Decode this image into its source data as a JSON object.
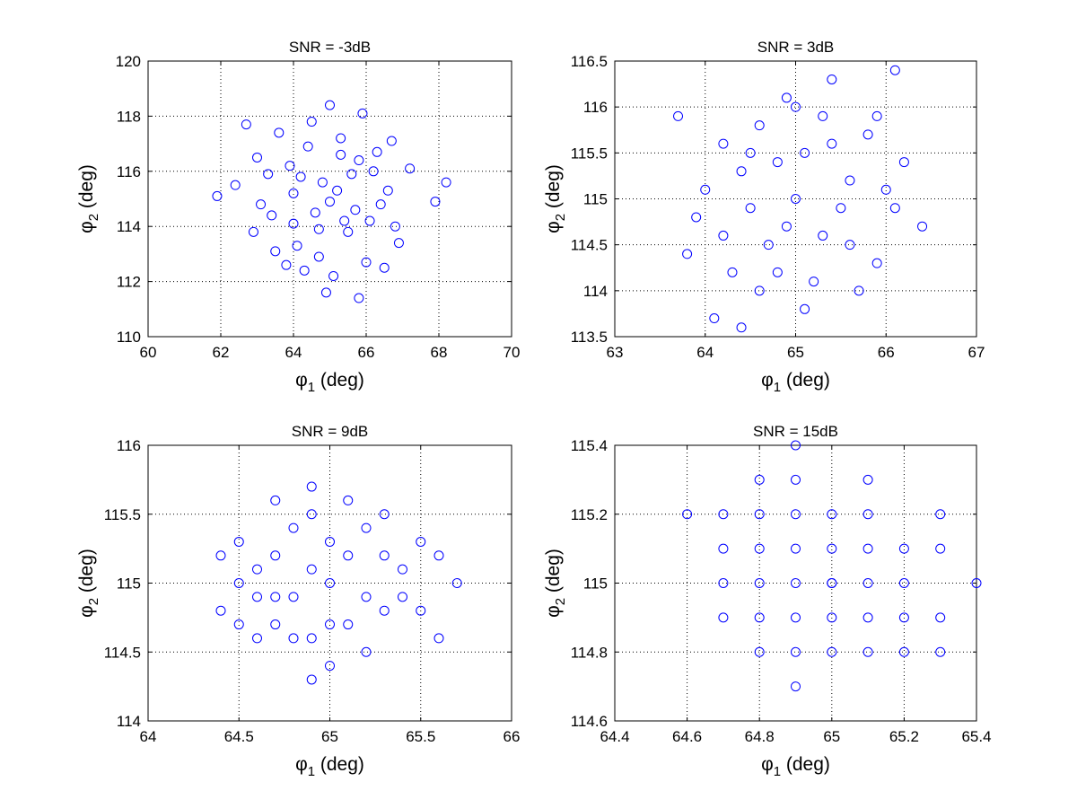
{
  "chart_data": [
    {
      "type": "scatter",
      "title": "SNR = -3dB",
      "xlabel": {
        "symbol": "φ",
        "sub": "1",
        "unit": " (deg)"
      },
      "ylabel": {
        "symbol": "φ",
        "sub": "2",
        "unit": " (deg)"
      },
      "xlim": [
        60,
        70
      ],
      "ylim": [
        110,
        120
      ],
      "xticks": [
        60,
        62,
        64,
        66,
        68,
        70
      ],
      "yticks": [
        110,
        112,
        114,
        116,
        118,
        120
      ],
      "xtick_labels": [
        "60",
        "62",
        "64",
        "66",
        "68",
        "70"
      ],
      "ytick_labels": [
        "110",
        "112",
        "114",
        "116",
        "118",
        "120"
      ],
      "marker_color": "#0000ff",
      "grid": true,
      "points": [
        [
          65.0,
          114.9
        ],
        [
          64.2,
          115.8
        ],
        [
          66.1,
          114.2
        ],
        [
          63.5,
          113.1
        ],
        [
          65.8,
          116.4
        ],
        [
          64.7,
          112.9
        ],
        [
          66.6,
          115.3
        ],
        [
          63.1,
          114.8
        ],
        [
          65.3,
          117.2
        ],
        [
          64.0,
          114.1
        ],
        [
          67.2,
          116.1
        ],
        [
          62.4,
          115.5
        ],
        [
          65.5,
          113.8
        ],
        [
          64.4,
          116.9
        ],
        [
          66.9,
          113.4
        ],
        [
          63.8,
          112.6
        ],
        [
          65.9,
          118.1
        ],
        [
          64.9,
          111.6
        ],
        [
          65.8,
          111.4
        ],
        [
          68.2,
          115.6
        ],
        [
          61.9,
          115.1
        ],
        [
          62.7,
          117.7
        ],
        [
          67.9,
          114.9
        ],
        [
          63.3,
          115.9
        ],
        [
          65.2,
          115.3
        ],
        [
          64.6,
          114.5
        ],
        [
          65.6,
          115.9
        ],
        [
          66.3,
          116.7
        ],
        [
          64.1,
          113.3
        ],
        [
          63.6,
          117.4
        ],
        [
          65.0,
          118.4
        ],
        [
          66.0,
          112.7
        ],
        [
          64.3,
          112.4
        ],
        [
          65.4,
          114.2
        ],
        [
          66.4,
          114.8
        ],
        [
          63.9,
          116.2
        ],
        [
          64.8,
          115.6
        ],
        [
          66.7,
          117.1
        ],
        [
          62.9,
          113.8
        ],
        [
          65.1,
          112.2
        ],
        [
          66.2,
          116.0
        ],
        [
          63.4,
          114.4
        ],
        [
          64.5,
          117.8
        ],
        [
          65.7,
          114.6
        ],
        [
          64.0,
          115.2
        ],
        [
          66.5,
          112.5
        ],
        [
          63.0,
          116.5
        ],
        [
          65.3,
          116.6
        ],
        [
          64.7,
          113.9
        ],
        [
          66.8,
          114.0
        ]
      ]
    },
    {
      "type": "scatter",
      "title": "SNR = 3dB",
      "xlabel": {
        "symbol": "φ",
        "sub": "1",
        "unit": " (deg)"
      },
      "ylabel": {
        "symbol": "φ",
        "sub": "2",
        "unit": " (deg)"
      },
      "xlim": [
        63,
        67
      ],
      "ylim": [
        113.5,
        116.5
      ],
      "xticks": [
        63,
        64,
        65,
        66,
        67
      ],
      "yticks": [
        113.5,
        114,
        114.5,
        115,
        115.5,
        116,
        116.5
      ],
      "xtick_labels": [
        "63",
        "64",
        "65",
        "66",
        "67"
      ],
      "ytick_labels": [
        "113.5",
        "114",
        "114.5",
        "115",
        "115.5",
        "116",
        "116.5"
      ],
      "marker_color": "#0000ff",
      "grid": true,
      "points": [
        [
          65.0,
          115.0
        ],
        [
          63.7,
          115.9
        ],
        [
          66.1,
          116.4
        ],
        [
          64.1,
          113.7
        ],
        [
          64.4,
          113.6
        ],
        [
          66.4,
          114.7
        ],
        [
          65.4,
          116.3
        ],
        [
          65.1,
          113.8
        ],
        [
          64.8,
          115.4
        ],
        [
          65.3,
          114.6
        ],
        [
          64.5,
          114.9
        ],
        [
          65.6,
          115.2
        ],
        [
          64.2,
          115.6
        ],
        [
          65.9,
          114.3
        ],
        [
          64.9,
          116.1
        ],
        [
          65.2,
          114.1
        ],
        [
          64.6,
          115.8
        ],
        [
          65.8,
          115.7
        ],
        [
          63.9,
          114.8
        ],
        [
          66.0,
          115.1
        ],
        [
          64.3,
          114.2
        ],
        [
          65.5,
          114.9
        ],
        [
          64.7,
          114.5
        ],
        [
          65.1,
          115.5
        ],
        [
          63.8,
          114.4
        ],
        [
          66.2,
          115.4
        ],
        [
          64.4,
          115.3
        ],
        [
          65.7,
          114.0
        ],
        [
          64.9,
          114.7
        ],
        [
          65.3,
          115.9
        ],
        [
          64.0,
          115.1
        ],
        [
          65.9,
          115.9
        ],
        [
          64.6,
          114.0
        ],
        [
          65.4,
          115.6
        ],
        [
          64.8,
          114.2
        ],
        [
          66.1,
          114.9
        ],
        [
          64.2,
          114.6
        ],
        [
          65.0,
          116.0
        ],
        [
          65.6,
          114.5
        ],
        [
          64.5,
          115.5
        ]
      ]
    },
    {
      "type": "scatter",
      "title": "SNR = 9dB",
      "xlabel": {
        "symbol": "φ",
        "sub": "1",
        "unit": " (deg)"
      },
      "ylabel": {
        "symbol": "φ",
        "sub": "2",
        "unit": " (deg)"
      },
      "xlim": [
        64,
        66
      ],
      "ylim": [
        114,
        116
      ],
      "xticks": [
        64,
        64.5,
        65,
        65.5,
        66
      ],
      "yticks": [
        114,
        114.5,
        115,
        115.5,
        116
      ],
      "xtick_labels": [
        "64",
        "64.5",
        "65",
        "65.5",
        "66"
      ],
      "ytick_labels": [
        "114",
        "114.5",
        "115",
        "115.5",
        "116"
      ],
      "marker_color": "#0000ff",
      "grid": true,
      "points": [
        [
          65.0,
          115.0
        ],
        [
          64.4,
          114.8
        ],
        [
          65.7,
          115.0
        ],
        [
          64.9,
          114.3
        ],
        [
          64.9,
          115.7
        ],
        [
          65.6,
          114.6
        ],
        [
          64.5,
          115.3
        ],
        [
          65.3,
          115.5
        ],
        [
          64.7,
          114.7
        ],
        [
          65.2,
          114.5
        ],
        [
          64.8,
          115.4
        ],
        [
          65.4,
          114.9
        ],
        [
          64.6,
          115.1
        ],
        [
          65.1,
          115.6
        ],
        [
          64.9,
          114.6
        ],
        [
          65.5,
          115.3
        ],
        [
          64.5,
          114.7
        ],
        [
          65.0,
          114.4
        ],
        [
          64.7,
          115.6
        ],
        [
          65.3,
          114.8
        ],
        [
          64.8,
          114.9
        ],
        [
          65.1,
          115.2
        ],
        [
          64.6,
          114.9
        ],
        [
          65.4,
          115.1
        ],
        [
          64.9,
          115.1
        ],
        [
          65.2,
          114.9
        ],
        [
          64.7,
          115.2
        ],
        [
          65.0,
          115.3
        ],
        [
          64.8,
          114.6
        ],
        [
          65.3,
          115.2
        ],
        [
          64.4,
          115.2
        ],
        [
          65.6,
          115.2
        ],
        [
          64.6,
          114.6
        ],
        [
          65.1,
          114.7
        ],
        [
          64.9,
          115.5
        ],
        [
          65.5,
          114.8
        ],
        [
          64.7,
          114.9
        ],
        [
          65.2,
          115.4
        ],
        [
          64.5,
          115.0
        ],
        [
          65.0,
          114.7
        ]
      ]
    },
    {
      "type": "scatter",
      "title": "SNR = 15dB",
      "xlabel": {
        "symbol": "φ",
        "sub": "1",
        "unit": " (deg)"
      },
      "ylabel": {
        "symbol": "φ",
        "sub": "2",
        "unit": " (deg)"
      },
      "xlim": [
        64.4,
        65.4
      ],
      "ylim": [
        114.6,
        115.4
      ],
      "xticks": [
        64.4,
        64.6,
        64.8,
        65,
        65.2,
        65.4
      ],
      "yticks": [
        114.6,
        114.8,
        115,
        115.2,
        115.4
      ],
      "xtick_labels": [
        "64.4",
        "64.6",
        "64.8",
        "65",
        "65.2",
        "65.4"
      ],
      "ytick_labels": [
        "114.6",
        "114.8",
        "115",
        "115.2",
        "115.4"
      ],
      "marker_color": "#0000ff",
      "grid": true,
      "points": [
        [
          65.0,
          115.0
        ],
        [
          64.6,
          115.2
        ],
        [
          65.4,
          115.0
        ],
        [
          64.9,
          115.4
        ],
        [
          64.9,
          114.7
        ],
        [
          64.8,
          115.3
        ],
        [
          65.3,
          115.2
        ],
        [
          64.7,
          115.0
        ],
        [
          65.2,
          114.8
        ],
        [
          64.8,
          114.9
        ],
        [
          65.1,
          115.1
        ],
        [
          64.9,
          115.2
        ],
        [
          65.0,
          114.9
        ],
        [
          64.8,
          115.1
        ],
        [
          65.2,
          115.1
        ],
        [
          64.9,
          114.8
        ],
        [
          65.1,
          114.9
        ],
        [
          64.7,
          115.1
        ],
        [
          65.3,
          114.9
        ],
        [
          65.0,
          115.2
        ],
        [
          64.8,
          114.8
        ],
        [
          65.2,
          115.0
        ],
        [
          64.9,
          115.0
        ],
        [
          65.1,
          115.3
        ],
        [
          64.9,
          115.1
        ],
        [
          65.0,
          114.8
        ],
        [
          65.1,
          115.0
        ],
        [
          64.8,
          115.0
        ],
        [
          65.0,
          115.1
        ],
        [
          65.2,
          114.9
        ],
        [
          64.7,
          114.9
        ],
        [
          65.3,
          115.1
        ],
        [
          64.8,
          115.2
        ],
        [
          65.1,
          114.8
        ],
        [
          64.9,
          114.9
        ],
        [
          65.0,
          115.0
        ],
        [
          64.7,
          115.2
        ],
        [
          65.3,
          114.8
        ],
        [
          64.9,
          115.3
        ],
        [
          65.1,
          115.2
        ]
      ]
    }
  ]
}
